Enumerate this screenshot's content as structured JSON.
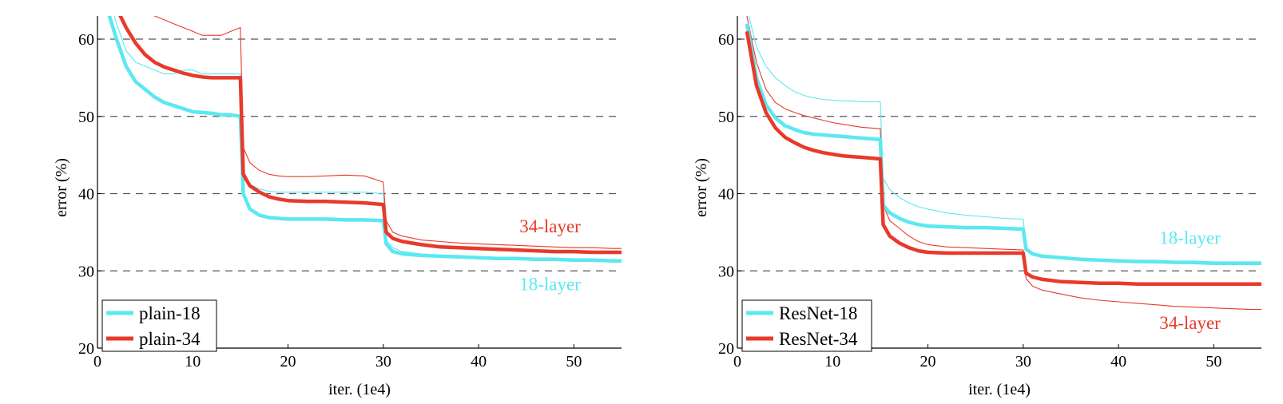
{
  "chart_data": [
    {
      "type": "line",
      "xlabel": "iter. (1e4)",
      "ylabel": "error (%)",
      "xlim": [
        0,
        55
      ],
      "ylim": [
        20,
        63
      ],
      "xticks": [
        0,
        10,
        20,
        30,
        40,
        50
      ],
      "yticks": [
        20,
        30,
        40,
        50,
        60
      ],
      "grid": "horizontal dashed",
      "legend_position": "bottom-left",
      "series": [
        {
          "name": "plain-18",
          "role": "val",
          "color": "#5ce8f0",
          "x": [
            1,
            2,
            3,
            4,
            5,
            6,
            7,
            8,
            9,
            10,
            11,
            12,
            13,
            14,
            15,
            15.3,
            16,
            17,
            18,
            19,
            20,
            22,
            24,
            26,
            28,
            30,
            30.3,
            31,
            32,
            34,
            36,
            38,
            40,
            42,
            44,
            46,
            48,
            50,
            52,
            54,
            55
          ],
          "y": [
            64,
            60,
            56.5,
            54.5,
            53.5,
            52.5,
            51.8,
            51.4,
            51,
            50.6,
            50.5,
            50.4,
            50.2,
            50.2,
            50,
            40,
            38,
            37.2,
            36.9,
            36.8,
            36.7,
            36.7,
            36.7,
            36.6,
            36.6,
            36.5,
            33.5,
            32.5,
            32.2,
            32,
            31.9,
            31.8,
            31.7,
            31.6,
            31.6,
            31.5,
            31.5,
            31.4,
            31.4,
            31.3,
            31.3
          ]
        },
        {
          "name": "plain-34",
          "role": "val",
          "color": "#e8392a",
          "x": [
            1,
            2,
            3,
            4,
            5,
            6,
            7,
            8,
            9,
            10,
            11,
            12,
            13,
            14,
            15,
            15.3,
            16,
            17,
            18,
            19,
            20,
            22,
            24,
            26,
            28,
            30,
            30.3,
            31,
            32,
            34,
            36,
            38,
            40,
            42,
            44,
            46,
            48,
            50,
            52,
            54,
            55
          ],
          "y": [
            68,
            64,
            61.5,
            59.5,
            58,
            57,
            56.4,
            56,
            55.6,
            55.3,
            55.1,
            55,
            55,
            55,
            55,
            42.5,
            41,
            40.2,
            39.6,
            39.3,
            39.1,
            39,
            39,
            38.9,
            38.8,
            38.6,
            35,
            34.2,
            33.8,
            33.4,
            33.1,
            33,
            32.9,
            32.8,
            32.7,
            32.6,
            32.5,
            32.5,
            32.4,
            32.4,
            32.4
          ]
        },
        {
          "name": "plain-18 train",
          "role": "train",
          "color": "#5ce8f0",
          "x": [
            1,
            2,
            3,
            4,
            5,
            6,
            7,
            8,
            9,
            10,
            11,
            12,
            13,
            14,
            15,
            15.3,
            16,
            17,
            18,
            19,
            20,
            22,
            24,
            26,
            28,
            30,
            30.3,
            31,
            32,
            34,
            36,
            38,
            40,
            42,
            44,
            46,
            48,
            50,
            52,
            54,
            55
          ],
          "y": [
            66,
            62,
            58.5,
            57,
            56.5,
            56,
            55.5,
            55.5,
            56,
            56,
            55.5,
            55.5,
            55.5,
            55.5,
            55.5,
            43,
            41.2,
            40.6,
            40.3,
            40.2,
            40.2,
            40.2,
            40.2,
            40.2,
            40.2,
            40,
            34,
            33,
            32.5,
            32.2,
            32,
            32,
            31.8,
            31.7,
            31.6,
            31.5,
            31.5,
            31.4,
            31.3,
            31.2,
            31.2
          ]
        },
        {
          "name": "plain-34 train",
          "role": "train",
          "color": "#e8392a",
          "x": [
            1,
            2,
            3,
            4,
            5,
            6,
            7,
            8,
            9,
            10,
            11,
            12,
            13,
            14,
            15,
            15.3,
            16,
            17,
            18,
            19,
            20,
            22,
            24,
            26,
            28,
            30,
            30.3,
            31,
            32,
            34,
            36,
            38,
            40,
            42,
            44,
            46,
            48,
            50,
            52,
            54,
            55
          ],
          "y": [
            70,
            67,
            65,
            64,
            63.5,
            63,
            62.5,
            62,
            61.5,
            61,
            60.5,
            60.5,
            60.5,
            61,
            61.5,
            46,
            44,
            43,
            42.5,
            42.3,
            42.2,
            42.2,
            42.3,
            42.4,
            42.3,
            41.5,
            36.5,
            35,
            34.5,
            34,
            33.8,
            33.6,
            33.5,
            33.4,
            33.3,
            33.2,
            33.1,
            33,
            33,
            32.9,
            32.9
          ]
        }
      ],
      "annotations": [
        {
          "text": "34-layer",
          "color": "#e8392a",
          "x": 47.5,
          "y": 35
        },
        {
          "text": "18-layer",
          "color": "#5ce8f0",
          "x": 47.5,
          "y": 27.5
        }
      ]
    },
    {
      "type": "line",
      "xlabel": "iter. (1e4)",
      "ylabel": "error (%)",
      "xlim": [
        0,
        55
      ],
      "ylim": [
        20,
        63
      ],
      "xticks": [
        0,
        10,
        20,
        30,
        40,
        50
      ],
      "yticks": [
        20,
        30,
        40,
        50,
        60
      ],
      "grid": "horizontal dashed",
      "legend_position": "bottom-left",
      "series": [
        {
          "name": "ResNet-18",
          "role": "val",
          "color": "#5ce8f0",
          "x": [
            1,
            2,
            3,
            4,
            5,
            6,
            7,
            8,
            9,
            10,
            11,
            12,
            13,
            14,
            15,
            15.3,
            16,
            17,
            18,
            19,
            20,
            22,
            24,
            26,
            28,
            30,
            30.3,
            31,
            32,
            34,
            36,
            38,
            40,
            42,
            44,
            46,
            48,
            50,
            52,
            54,
            55
          ],
          "y": [
            62,
            55,
            51.5,
            49.8,
            48.8,
            48.3,
            47.9,
            47.7,
            47.6,
            47.5,
            47.4,
            47.3,
            47.2,
            47.1,
            47,
            38.5,
            37.5,
            36.8,
            36.3,
            36,
            35.8,
            35.7,
            35.6,
            35.6,
            35.5,
            35.4,
            32.8,
            32.2,
            31.9,
            31.7,
            31.5,
            31.4,
            31.3,
            31.2,
            31.2,
            31.1,
            31.1,
            31,
            31,
            31,
            31
          ]
        },
        {
          "name": "ResNet-34",
          "role": "val",
          "color": "#e8392a",
          "x": [
            1,
            2,
            3,
            4,
            5,
            6,
            7,
            8,
            9,
            10,
            11,
            12,
            13,
            14,
            15,
            15.3,
            16,
            17,
            18,
            19,
            20,
            22,
            24,
            26,
            28,
            30,
            30.3,
            31,
            32,
            34,
            36,
            38,
            40,
            42,
            44,
            46,
            48,
            50,
            52,
            54,
            55
          ],
          "y": [
            61,
            54,
            50.5,
            48.5,
            47.3,
            46.6,
            46,
            45.6,
            45.3,
            45.1,
            44.9,
            44.8,
            44.7,
            44.6,
            44.5,
            36,
            34.5,
            33.6,
            33,
            32.6,
            32.4,
            32.3,
            32.3,
            32.3,
            32.3,
            32.3,
            29.7,
            29.2,
            28.9,
            28.6,
            28.5,
            28.4,
            28.4,
            28.3,
            28.3,
            28.3,
            28.3,
            28.3,
            28.3,
            28.3,
            28.3
          ]
        },
        {
          "name": "ResNet-18 train",
          "role": "train",
          "color": "#5ce8f0",
          "x": [
            1,
            2,
            3,
            4,
            5,
            6,
            7,
            8,
            9,
            10,
            11,
            12,
            13,
            14,
            15,
            15.3,
            16,
            17,
            18,
            19,
            20,
            22,
            24,
            26,
            28,
            30,
            30.3,
            31,
            32,
            34,
            36,
            38,
            40,
            42,
            44,
            46,
            48,
            50,
            52,
            54,
            55
          ],
          "y": [
            64,
            59,
            56.5,
            55,
            54,
            53.2,
            52.7,
            52.4,
            52.2,
            52.1,
            52,
            52,
            51.9,
            51.9,
            51.9,
            42,
            40.5,
            39.5,
            38.8,
            38.3,
            38,
            37.5,
            37.2,
            37,
            36.8,
            36.7,
            33,
            32.3,
            32,
            31.7,
            31.5,
            31.3,
            31.2,
            31.1,
            31,
            31,
            30.9,
            30.8,
            30.8,
            30.8,
            30.8
          ]
        },
        {
          "name": "ResNet-34 train",
          "role": "train",
          "color": "#e8392a",
          "x": [
            1,
            2,
            3,
            4,
            5,
            6,
            7,
            8,
            9,
            10,
            11,
            12,
            13,
            14,
            15,
            15.3,
            16,
            17,
            18,
            19,
            20,
            22,
            24,
            26,
            28,
            30,
            30.3,
            31,
            32,
            34,
            36,
            38,
            40,
            42,
            44,
            46,
            48,
            50,
            52,
            54,
            55
          ],
          "y": [
            63,
            57,
            53.5,
            51.8,
            51,
            50.5,
            50.1,
            49.8,
            49.5,
            49.2,
            49,
            48.8,
            48.6,
            48.5,
            48.4,
            38.5,
            36.5,
            35.5,
            34.5,
            33.8,
            33.4,
            33.1,
            33,
            32.9,
            32.8,
            32.7,
            29,
            28,
            27.5,
            27,
            26.5,
            26.2,
            26,
            25.8,
            25.6,
            25.4,
            25.3,
            25.2,
            25.1,
            25,
            25
          ]
        }
      ],
      "annotations": [
        {
          "text": "18-layer",
          "color": "#5ce8f0",
          "x": 47.5,
          "y": 33.5
        },
        {
          "text": "34-layer",
          "color": "#e8392a",
          "x": 47.5,
          "y": 22.5
        }
      ]
    }
  ]
}
